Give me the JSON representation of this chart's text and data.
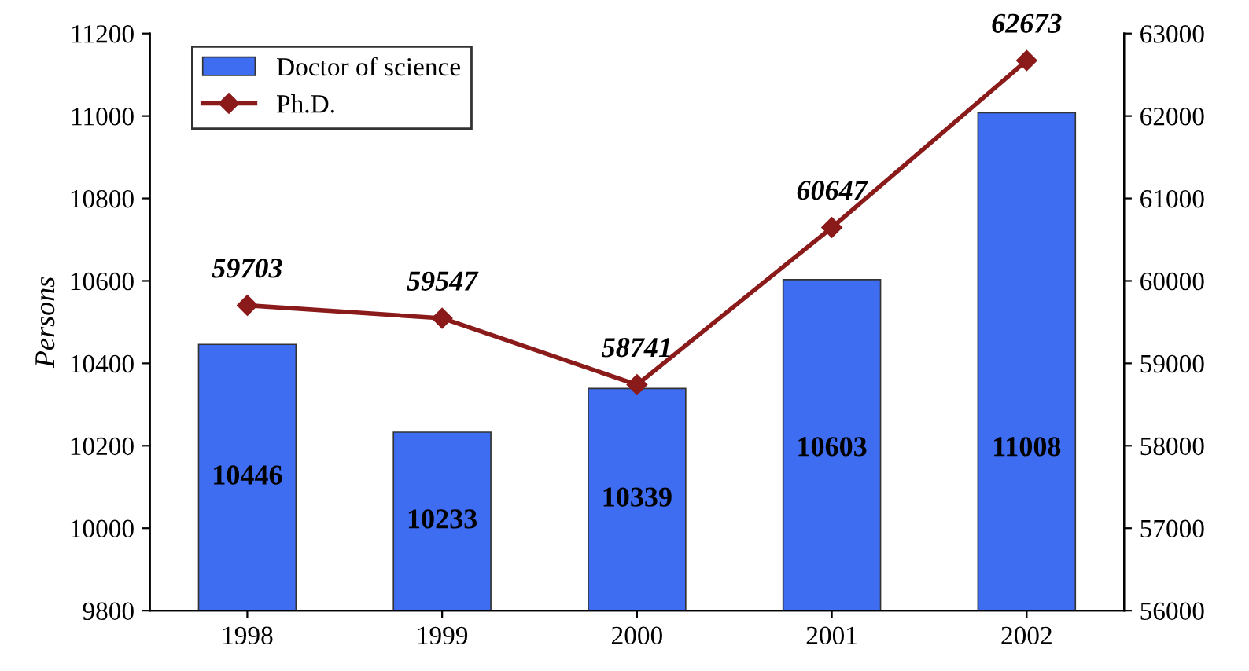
{
  "chart_data": {
    "type": "bar",
    "ylabel": "Persons",
    "categories": [
      "1998",
      "1999",
      "2000",
      "2001",
      "2002"
    ],
    "series": [
      {
        "name": "Doctor of science",
        "color": "#3f6df2",
        "values": [
          10446,
          10233,
          10339,
          10603,
          11008
        ]
      },
      {
        "name": "Ph.D.",
        "type": "line",
        "axis": "y2",
        "color": "#8b1a1a",
        "values": [
          59703,
          59547,
          58741,
          60647,
          62673
        ]
      }
    ],
    "ylim": [
      9800,
      11200
    ],
    "yticks": [
      9800,
      10000,
      10200,
      10400,
      10600,
      10800,
      11000,
      11200
    ],
    "y2lim": [
      56000,
      63000
    ],
    "y2ticks": [
      56000,
      57000,
      58000,
      59000,
      60000,
      61000,
      62000,
      63000
    ],
    "data_labels": true,
    "legend": "top left",
    "grid": false,
    "marker": "diamond",
    "line_style": "solid"
  }
}
